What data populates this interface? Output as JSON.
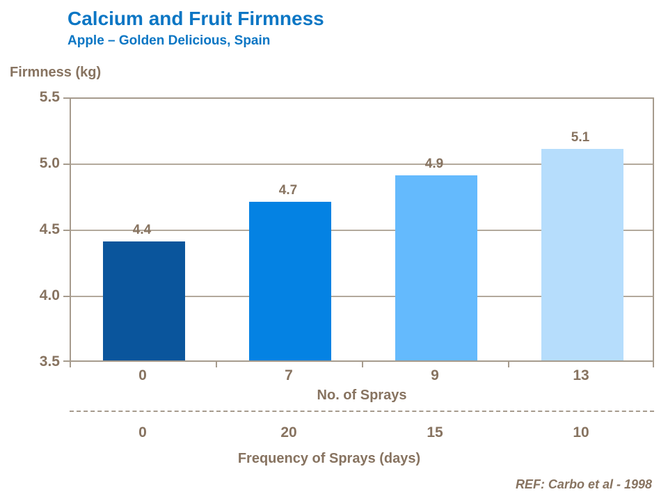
{
  "header": {
    "title": "Calcium and Fruit Firmness",
    "subtitle": "Apple – Golden Delicious, Spain"
  },
  "chart_data": {
    "type": "bar",
    "title": "Calcium and Fruit Firmness",
    "subtitle": "Apple – Golden Delicious, Spain",
    "ylabel": "Firmness (kg)",
    "ylim": [
      3.5,
      5.5
    ],
    "yticks": [
      "5.5",
      "5.0",
      "4.5",
      "4.0",
      "3.5"
    ],
    "ytick_values": [
      5.5,
      5.0,
      4.5,
      4.0,
      3.5
    ],
    "grid": true,
    "legend": "none",
    "categories": [
      "0",
      "7",
      "9",
      "13"
    ],
    "values": [
      4.4,
      4.7,
      4.9,
      5.1
    ],
    "value_labels": [
      "4.4",
      "4.7",
      "4.9",
      "5.1"
    ],
    "bar_colors": [
      "#0A559C",
      "#0482E3",
      "#64BAFD",
      "#B6DDFC"
    ],
    "x_axis_rows": [
      {
        "label": "No. of Sprays",
        "values": [
          "0",
          "7",
          "9",
          "13"
        ]
      },
      {
        "label": "Frequency of Sprays (days)",
        "values": [
          "0",
          "20",
          "15",
          "10"
        ]
      }
    ],
    "reference": "REF: Carbo et al - 1998"
  },
  "colors": {
    "title_blue": "#0B76C4",
    "label_taupe": "#877360",
    "axis": "#A69B8D",
    "gridline": "#B3A99C",
    "background": "#FFFFFF"
  }
}
